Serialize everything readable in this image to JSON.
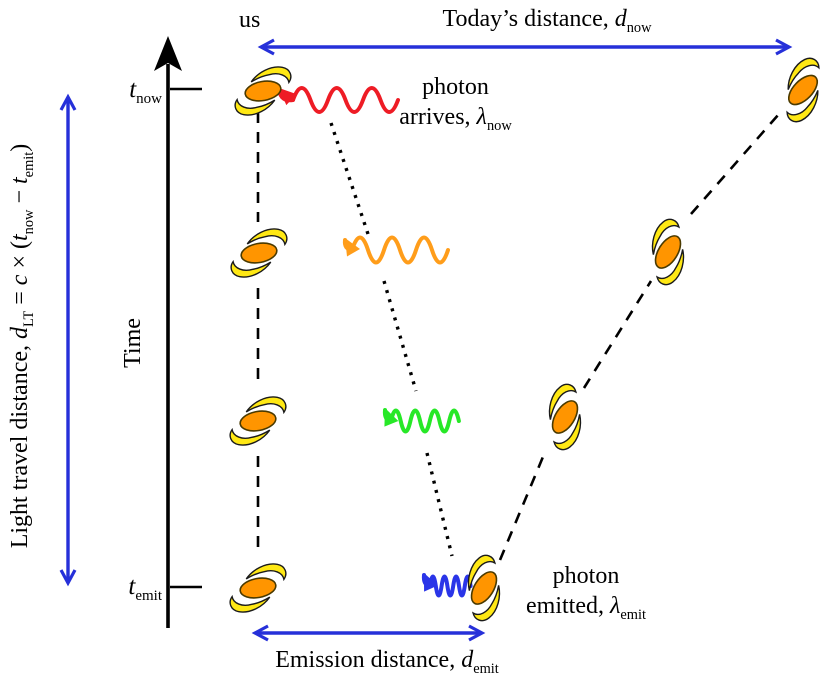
{
  "labels": {
    "us": [
      {
        "t": "us"
      }
    ],
    "todays_distance": [
      {
        "t": "Today’s distance, "
      },
      {
        "t": "d",
        "i": 1
      },
      {
        "t": "now",
        "sub": 1
      }
    ],
    "t_now": [
      {
        "t": "t",
        "i": 1
      },
      {
        "t": "now",
        "sub": 1
      }
    ],
    "t_emit": [
      {
        "t": "t",
        "i": 1
      },
      {
        "t": "emit",
        "sub": 1
      }
    ],
    "time_axis": [
      {
        "t": "Time"
      }
    ],
    "light_travel_formula": [
      {
        "t": "Light travel distance,  "
      },
      {
        "t": "d",
        "i": 1
      },
      {
        "t": "LT",
        "sub": 1
      },
      {
        "t": " = "
      },
      {
        "t": "c",
        "i": 1
      },
      {
        "t": " × ("
      },
      {
        "t": "t",
        "i": 1
      },
      {
        "t": "now",
        "sub": 1
      },
      {
        "t": " − "
      },
      {
        "t": "t",
        "i": 1
      },
      {
        "t": "emit",
        "sub": 1
      },
      {
        "t": ")"
      }
    ],
    "photon_arrives": {
      "line1": [
        {
          "t": "photon"
        }
      ],
      "line2": [
        {
          "t": "arrives, "
        },
        {
          "t": "λ",
          "i": 1
        },
        {
          "t": "now",
          "sub": 1
        }
      ]
    },
    "photon_emitted": {
      "line1": [
        {
          "t": "photon"
        }
      ],
      "line2": [
        {
          "t": "emitted, "
        },
        {
          "t": "λ",
          "i": 1
        },
        {
          "t": "emit",
          "sub": 1
        }
      ]
    },
    "emission_distance": [
      {
        "t": "Emission distance, "
      },
      {
        "t": "d",
        "i": 1
      },
      {
        "t": "emit",
        "sub": 1
      }
    ]
  },
  "colors": {
    "ink": "#000000",
    "arrow_blue": "#2630d9",
    "photon_red": "#ee1c25",
    "photon_orange": "#ff9d1a",
    "photon_green": "#27e827",
    "photon_blue": "#2a35e8",
    "galaxy_body": "#ff9500",
    "galaxy_arm": "#ffe814"
  },
  "icons": {
    "galaxy-icon": "spiral galaxy (orange ellipse with two yellow arms)",
    "photon-wave-icon": "wavy sine arrow representing a photon",
    "double-arrow-icon": "blue double-headed measurement arrow",
    "time-axis-arrow-icon": "black vertical axis arrow"
  }
}
